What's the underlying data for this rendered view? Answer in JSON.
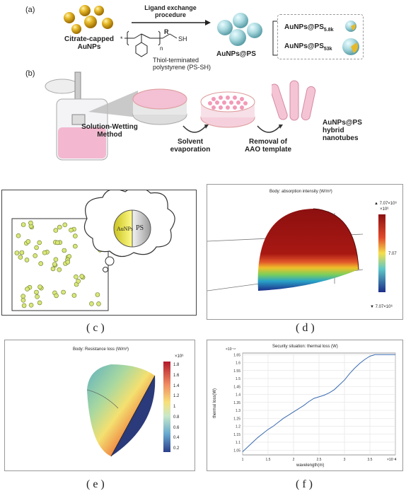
{
  "top": {
    "label_a": "(a)",
    "label_b": "(b)",
    "citrate_label": [
      "Citrate-capped",
      "AuNPs"
    ],
    "ligand_arrow": [
      "Ligand exchange",
      "procedure"
    ],
    "polymer_r": "R",
    "polymer_sh": "SH",
    "polymer_n": "n",
    "polymer_star": "*",
    "thiol_label": [
      "Thiol-terminated",
      "polystyrene (PS-SH)"
    ],
    "aunps_ps": "AuNPs@PS",
    "variants": [
      {
        "base": "AuNPs@PS",
        "sub": "5.8k"
      },
      {
        "base": "AuNPs@PS",
        "sub": "53k"
      }
    ],
    "solution_label": [
      "Solution-Wetting",
      "Method"
    ],
    "solvent_label": [
      "Solvent",
      "evaporation"
    ],
    "removal_label": [
      "Removal of",
      "AAO template"
    ],
    "hybrid_label": [
      "AuNPs@PS",
      "hybrid",
      "nanotubes"
    ]
  },
  "panel_c": {
    "label": "( c )",
    "core_text": "AuNPs",
    "shell_text": "PS"
  },
  "panel_d": {
    "label": "( d )",
    "title": "Body: absorption intensity (W/m³)",
    "max": "▲ 7.07×10⁶",
    "scale": "×10⁶",
    "mid": "7.07",
    "min": "▼ 7.07×10⁶"
  },
  "panel_e": {
    "label": "( e )",
    "title": "Body: Resistance loss (W/m³)",
    "scale": "×10⁶",
    "ticks": [
      "1.8",
      "1.6",
      "1.4",
      "1.2",
      "1",
      "0.8",
      "0.6",
      "0.4",
      "0.2"
    ]
  },
  "panel_f": {
    "label": "( f )",
    "title": "Security situation: thermal loss (W)",
    "y_scale": "×10⁻¹⁷",
    "x_scale": "×10⁻⁷",
    "xlabel": "wavelength(m)",
    "ylabel": "thermal loss(W)"
  },
  "chart_data": {
    "type": "line",
    "title": "Security situation: thermal loss (W)",
    "xlabel": "wavelength(m)",
    "ylabel": "thermal loss(W)",
    "x_scale": "×10⁻⁷",
    "y_scale": "×10⁻¹⁷",
    "xlim": [
      1,
      4
    ],
    "ylim": [
      1.02,
      1.66
    ],
    "x_ticks": [
      "1",
      "1.5",
      "2",
      "2.5",
      "3",
      "3.5",
      "4"
    ],
    "y_ticks": [
      "1.05",
      "1.1",
      "1.15",
      "1.2",
      "1.25",
      "1.3",
      "1.35",
      "1.4",
      "1.45",
      "1.5",
      "1.55",
      "1.6",
      "1.65"
    ],
    "grid": true,
    "x": [
      1.0,
      1.1,
      1.2,
      1.3,
      1.4,
      1.5,
      1.6,
      1.7,
      1.8,
      1.9,
      2.0,
      2.1,
      2.2,
      2.3,
      2.4,
      2.5,
      2.6,
      2.7,
      2.8,
      2.9,
      3.0,
      3.1,
      3.2,
      3.3,
      3.4,
      3.5,
      3.6,
      3.7,
      3.8,
      3.9,
      4.0
    ],
    "y": [
      1.04,
      1.07,
      1.1,
      1.13,
      1.155,
      1.18,
      1.2,
      1.225,
      1.25,
      1.27,
      1.29,
      1.31,
      1.33,
      1.355,
      1.375,
      1.385,
      1.395,
      1.41,
      1.43,
      1.46,
      1.49,
      1.53,
      1.565,
      1.595,
      1.62,
      1.64,
      1.65,
      1.65,
      1.65,
      1.65,
      1.65
    ]
  }
}
